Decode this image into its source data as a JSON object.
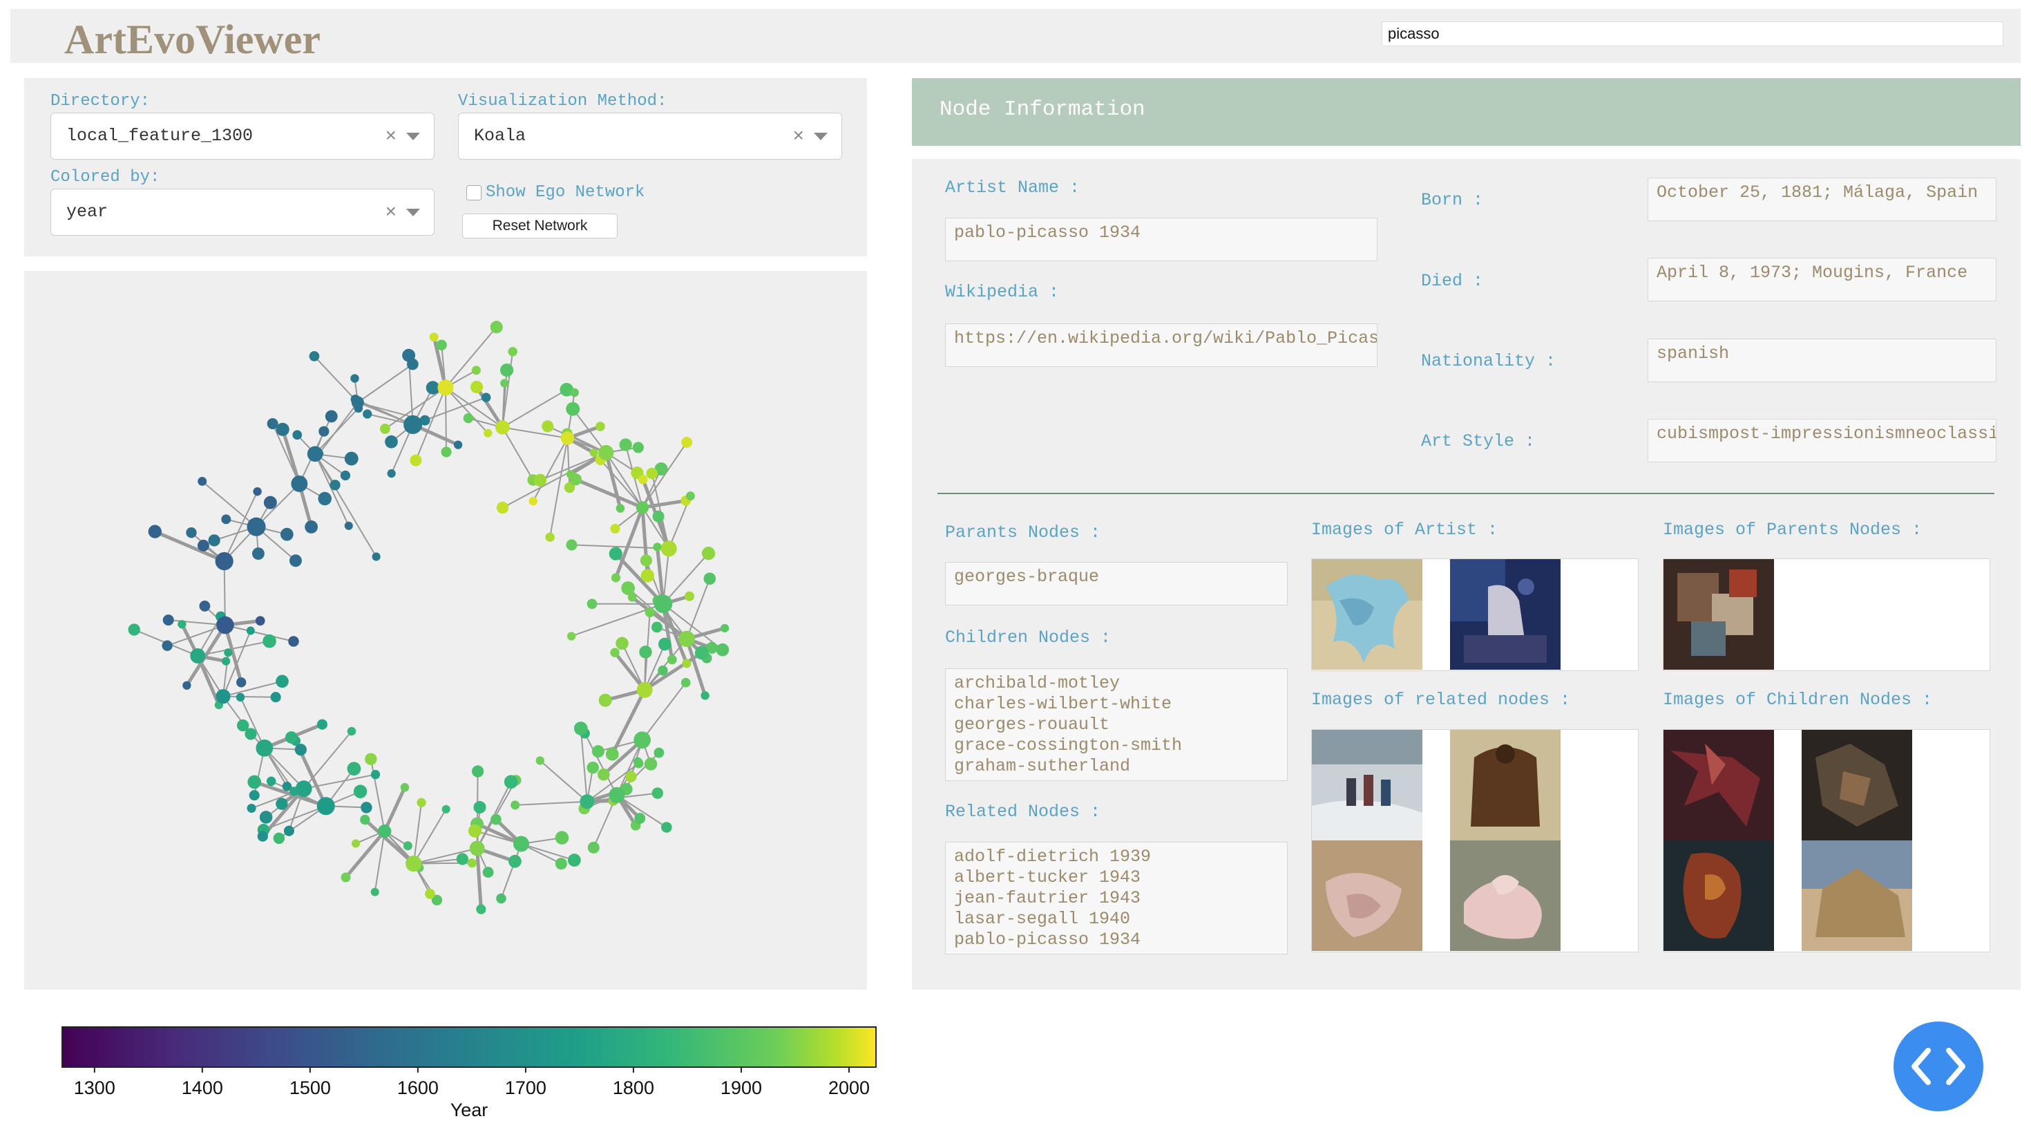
{
  "header": {
    "title": "ArtEvoViewer",
    "search_value": "picasso"
  },
  "controls": {
    "directory_label": "Directory:",
    "directory_value": "local_feature_1300",
    "method_label": "Visualization Method:",
    "method_value": "Koala",
    "colored_label": "Colored by:",
    "colored_value": "year",
    "ego_label": "Show Ego Network",
    "ego_checked": false,
    "reset_label": "Reset Network",
    "clear_glyph": "×"
  },
  "colorbar": {
    "ticks": [
      "1300",
      "1400",
      "1500",
      "1600",
      "1700",
      "1800",
      "1900",
      "2000"
    ],
    "label": "Year",
    "range": [
      1270,
      2025
    ],
    "colormap": "viridis"
  },
  "node_info": {
    "title": "Node Information",
    "artist_name_label": "Artist Name :",
    "artist_name": "pablo-picasso 1934",
    "wikipedia_label": "Wikipedia :",
    "wikipedia": "https://en.wikipedia.org/wiki/Pablo_Picasso",
    "born_label": "Born :",
    "born": "October 25, 1881; Málaga, Spain",
    "died_label": "Died :",
    "died": "April 8, 1973; Mougins, France",
    "nationality_label": "Nationality :",
    "nationality": "spanish",
    "style_label": "Art Style :",
    "style": "cubismpost-impressionismneoclassicism",
    "parents_label": "Parants Nodes :",
    "parents": [
      "georges-braque"
    ],
    "children_label": "Children Nodes :",
    "children": [
      "archibald-motley",
      "charles-wilbert-white",
      "georges-rouault",
      "grace-cossington-smith",
      "graham-sutherland"
    ],
    "related_label": "Related Nodes :",
    "related": [
      "adolf-dietrich 1939",
      "albert-tucker 1943",
      "jean-fautrier 1943",
      "lasar-segall 1940",
      "pablo-picasso 1934"
    ],
    "images_artist_label": "Images of Artist :",
    "images_parents_label": "Images of Parents Nodes :",
    "images_related_label": "Images of related nodes :",
    "images_children_label": "Images of Children Nodes :"
  },
  "colors": {
    "accent": "#5aa3c6",
    "title": "#a0927a",
    "value_text": "#9c8a6a",
    "header_band": "#b5cbbb",
    "fab": "#3b8ef0"
  },
  "icons": {
    "fab": "code-icon",
    "dropdown": "chevron-down-icon",
    "clear": "clear-icon"
  }
}
